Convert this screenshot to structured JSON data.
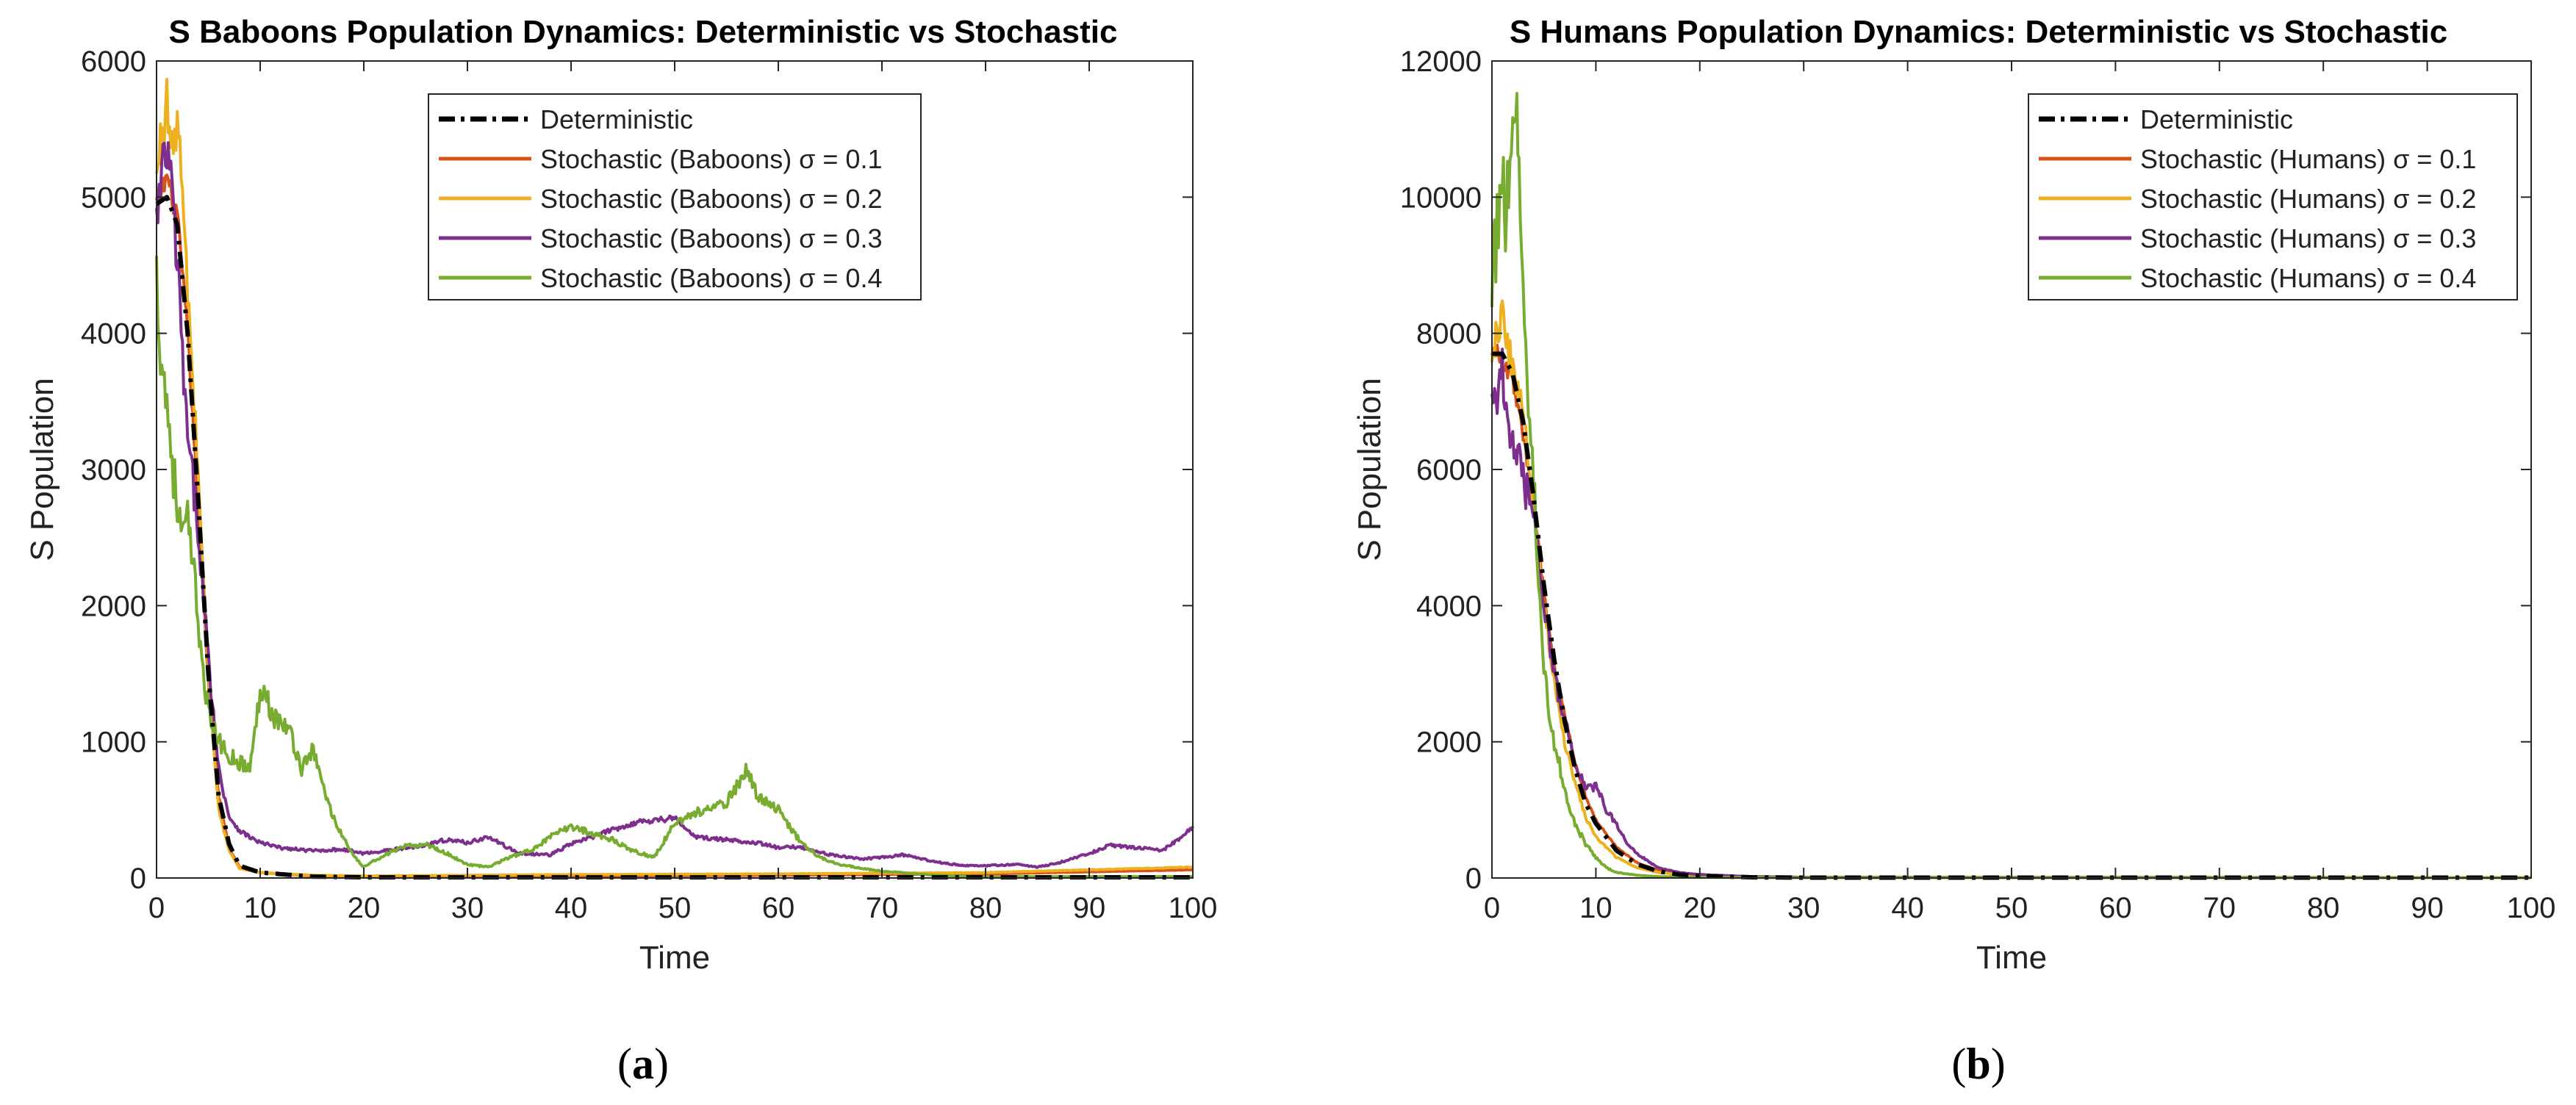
{
  "chart_data": [
    {
      "type": "line",
      "title": "S Baboons Population Dynamics: Deterministic vs Stochastic",
      "xlabel": "Time",
      "ylabel": "S Population",
      "xlim": [
        0,
        100
      ],
      "ylim": [
        0,
        6000
      ],
      "xticks": [
        0,
        10,
        20,
        30,
        40,
        50,
        60,
        70,
        80,
        90,
        100
      ],
      "yticks": [
        0,
        1000,
        2000,
        3000,
        4000,
        5000,
        6000
      ],
      "x_tick_labels": [
        "0",
        "10",
        "20",
        "30",
        "40",
        "50",
        "60",
        "70",
        "80",
        "90",
        "100"
      ],
      "y_tick_labels": [
        "0",
        "1000",
        "2000",
        "3000",
        "4000",
        "5000",
        "6000"
      ],
      "grid": false,
      "legend_position": "top-right",
      "caption": "a",
      "series": [
        {
          "name": "Deterministic",
          "color": "#000000",
          "style": "dashdot",
          "x": [
            0,
            1,
            2,
            3,
            4,
            5,
            6,
            7,
            8,
            10,
            15,
            20,
            40,
            60,
            80,
            100
          ],
          "y": [
            4950,
            5000,
            4800,
            4000,
            2800,
            1500,
            600,
            250,
            90,
            40,
            10,
            5,
            5,
            5,
            5,
            5
          ]
        },
        {
          "name": "Stochastic (Baboons) σ = 0.1",
          "color": "#D95319",
          "style": "solid",
          "x": [
            0,
            1,
            2,
            3,
            4,
            5,
            6,
            7,
            8,
            10,
            15,
            20,
            40,
            60,
            80,
            100
          ],
          "y": [
            4950,
            5150,
            4850,
            4000,
            2750,
            1450,
            600,
            220,
            80,
            40,
            15,
            10,
            15,
            20,
            30,
            60
          ]
        },
        {
          "name": "Stochastic (Baboons) σ = 0.2",
          "color": "#EDB120",
          "style": "solid",
          "x": [
            0,
            0.5,
            1,
            1.5,
            2,
            2.5,
            3,
            4,
            5,
            6,
            7,
            8,
            10,
            15,
            20,
            40,
            60,
            80,
            100
          ],
          "y": [
            5100,
            5500,
            5700,
            5300,
            5600,
            5000,
            4300,
            3000,
            1500,
            500,
            200,
            70,
            40,
            20,
            15,
            25,
            30,
            40,
            80
          ]
        },
        {
          "name": "Stochastic (Baboons) σ = 0.3",
          "color": "#7E2F8E",
          "style": "solid",
          "x": [
            0,
            0.5,
            1,
            1.5,
            2,
            3,
            4,
            5,
            6,
            7,
            8,
            9,
            10,
            12,
            15,
            18,
            20,
            22,
            25,
            28,
            30,
            32,
            35,
            38,
            40,
            42,
            45,
            47,
            50,
            52,
            55,
            58,
            60,
            62,
            65,
            68,
            70,
            72,
            75,
            78,
            80,
            83,
            85,
            87,
            90,
            92,
            95,
            97,
            99,
            100
          ],
          "y": [
            4800,
            5100,
            5350,
            5000,
            4500,
            3200,
            2600,
            1600,
            800,
            450,
            350,
            300,
            260,
            220,
            200,
            210,
            180,
            200,
            230,
            280,
            260,
            300,
            180,
            170,
            250,
            300,
            380,
            420,
            440,
            300,
            280,
            260,
            220,
            230,
            170,
            140,
            150,
            170,
            120,
            90,
            90,
            100,
            80,
            110,
            180,
            240,
            220,
            200,
            300,
            380
          ]
        },
        {
          "name": "Stochastic (Baboons) σ = 0.4",
          "color": "#77AC30",
          "style": "solid",
          "x": [
            0,
            0.5,
            1,
            1.5,
            2,
            2.5,
            3,
            3.5,
            4,
            5,
            6,
            7,
            8,
            9,
            10,
            10.5,
            11,
            12,
            13,
            14,
            15,
            16,
            17,
            18,
            19,
            20,
            22,
            24,
            26,
            28,
            30,
            32,
            34,
            36,
            38,
            40,
            42,
            44,
            46,
            48,
            50,
            52,
            54,
            55,
            56,
            57,
            58,
            60,
            62,
            64,
            66,
            68,
            70,
            75,
            80,
            90,
            100
          ],
          "y": [
            4400,
            3800,
            3500,
            3100,
            2700,
            2500,
            2600,
            2300,
            1900,
            1200,
            1000,
            900,
            850,
            800,
            1350,
            1450,
            1200,
            1150,
            1050,
            800,
            950,
            700,
            450,
            300,
            160,
            80,
            170,
            230,
            250,
            180,
            100,
            80,
            150,
            200,
            300,
            380,
            330,
            280,
            200,
            150,
            400,
            480,
            520,
            550,
            680,
            800,
            600,
            500,
            280,
            150,
            100,
            70,
            50,
            20,
            10,
            10,
            10
          ]
        }
      ]
    },
    {
      "type": "line",
      "title": "S Humans Population Dynamics: Deterministic vs Stochastic",
      "xlabel": "Time",
      "ylabel": "S Population",
      "xlim": [
        0,
        100
      ],
      "ylim": [
        0,
        12000
      ],
      "xticks": [
        0,
        10,
        20,
        30,
        40,
        50,
        60,
        70,
        80,
        90,
        100
      ],
      "yticks": [
        0,
        2000,
        4000,
        6000,
        8000,
        10000,
        12000
      ],
      "x_tick_labels": [
        "0",
        "10",
        "20",
        "30",
        "40",
        "50",
        "60",
        "70",
        "80",
        "90",
        "100"
      ],
      "y_tick_labels": [
        "0",
        "2000",
        "4000",
        "6000",
        "8000",
        "10000",
        "12000"
      ],
      "grid": false,
      "legend_position": "top-right",
      "caption": "b",
      "series": [
        {
          "name": "Deterministic",
          "color": "#000000",
          "style": "dashdot",
          "x": [
            0,
            1,
            2,
            3,
            4,
            5,
            6,
            7,
            8,
            9,
            10,
            12,
            14,
            16,
            18,
            20,
            25,
            30,
            50,
            100
          ],
          "y": [
            7700,
            7700,
            7400,
            6700,
            5600,
            4300,
            3200,
            2300,
            1600,
            1100,
            800,
            400,
            200,
            100,
            50,
            30,
            10,
            5,
            5,
            5
          ]
        },
        {
          "name": "Stochastic (Humans) σ = 0.1",
          "color": "#D95319",
          "style": "solid",
          "x": [
            0,
            1,
            2,
            3,
            4,
            5,
            6,
            7,
            8,
            9,
            10,
            12,
            14,
            16,
            18,
            20,
            25,
            30,
            50,
            100
          ],
          "y": [
            7800,
            7600,
            7300,
            6500,
            5500,
            4200,
            3100,
            2400,
            1700,
            1200,
            850,
            450,
            220,
            110,
            60,
            30,
            10,
            5,
            5,
            5
          ]
        },
        {
          "name": "Stochastic (Humans) σ = 0.2",
          "color": "#EDB120",
          "style": "solid",
          "x": [
            0,
            0.5,
            1,
            1.5,
            2,
            3,
            4,
            5,
            6,
            7,
            8,
            9,
            10,
            12,
            14,
            16,
            20,
            30,
            100
          ],
          "y": [
            7800,
            8000,
            8400,
            7800,
            7500,
            6800,
            5400,
            4000,
            2900,
            2000,
            1400,
            900,
            600,
            300,
            150,
            80,
            30,
            10,
            5
          ]
        },
        {
          "name": "Stochastic (Humans) σ = 0.3",
          "color": "#7E2F8E",
          "style": "solid",
          "x": [
            0,
            0.5,
            1,
            1.5,
            2,
            3,
            4,
            5,
            6,
            7,
            8,
            9,
            10,
            11,
            12,
            13,
            14,
            15,
            16,
            18,
            20,
            25,
            30,
            100
          ],
          "y": [
            7400,
            7000,
            7400,
            6700,
            6500,
            5800,
            5400,
            4000,
            3000,
            2300,
            1700,
            1300,
            1350,
            1000,
            800,
            500,
            350,
            250,
            150,
            80,
            50,
            20,
            10,
            5
          ]
        },
        {
          "name": "Stochastic (Humans) σ = 0.4",
          "color": "#77AC30",
          "style": "solid",
          "x": [
            0,
            0.5,
            1,
            1.3,
            1.6,
            2,
            2.3,
            2.6,
            3,
            3.5,
            4,
            4.5,
            5,
            6,
            7,
            8,
            9,
            10,
            11,
            12,
            14,
            16,
            20,
            30,
            100
          ],
          "y": [
            8800,
            9500,
            10400,
            9800,
            10200,
            11000,
            11500,
            10000,
            9000,
            7000,
            5800,
            4500,
            3000,
            2000,
            1300,
            800,
            500,
            300,
            150,
            80,
            40,
            20,
            10,
            5,
            5
          ]
        }
      ]
    }
  ]
}
